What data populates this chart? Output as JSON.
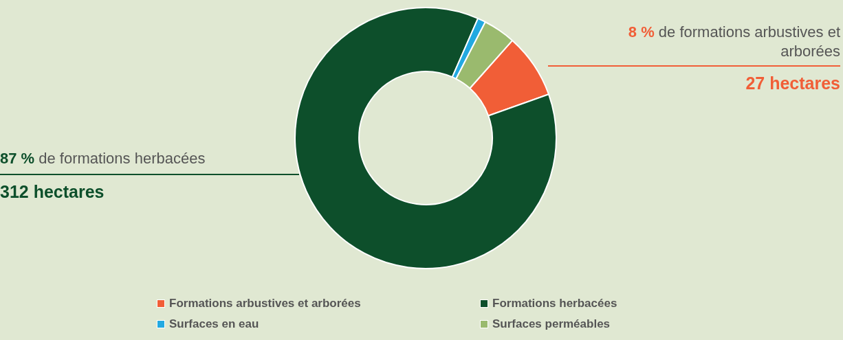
{
  "chart_data": {
    "type": "donut",
    "categories": [
      "Formations arbustives et arborées",
      "Formations herbacées",
      "Surfaces en eau",
      "Surfaces perméables"
    ],
    "values": [
      8,
      87,
      1,
      4
    ],
    "colors": [
      "#f15e37",
      "#0d4f2b",
      "#22a9e1",
      "#9aba6e"
    ],
    "legend": "bottom",
    "annotations": [
      {
        "text": "8 % de formations arbustives et arborées",
        "x": "Formations arbustives et arborées"
      },
      {
        "text": "27 hectares",
        "x": "Formations arbustives et arborées"
      },
      {
        "text": "87 % de formations herbacées",
        "x": "Formations herbacées"
      },
      {
        "text": "312 hectares",
        "x": "Formations herbacées"
      }
    ]
  }
}
